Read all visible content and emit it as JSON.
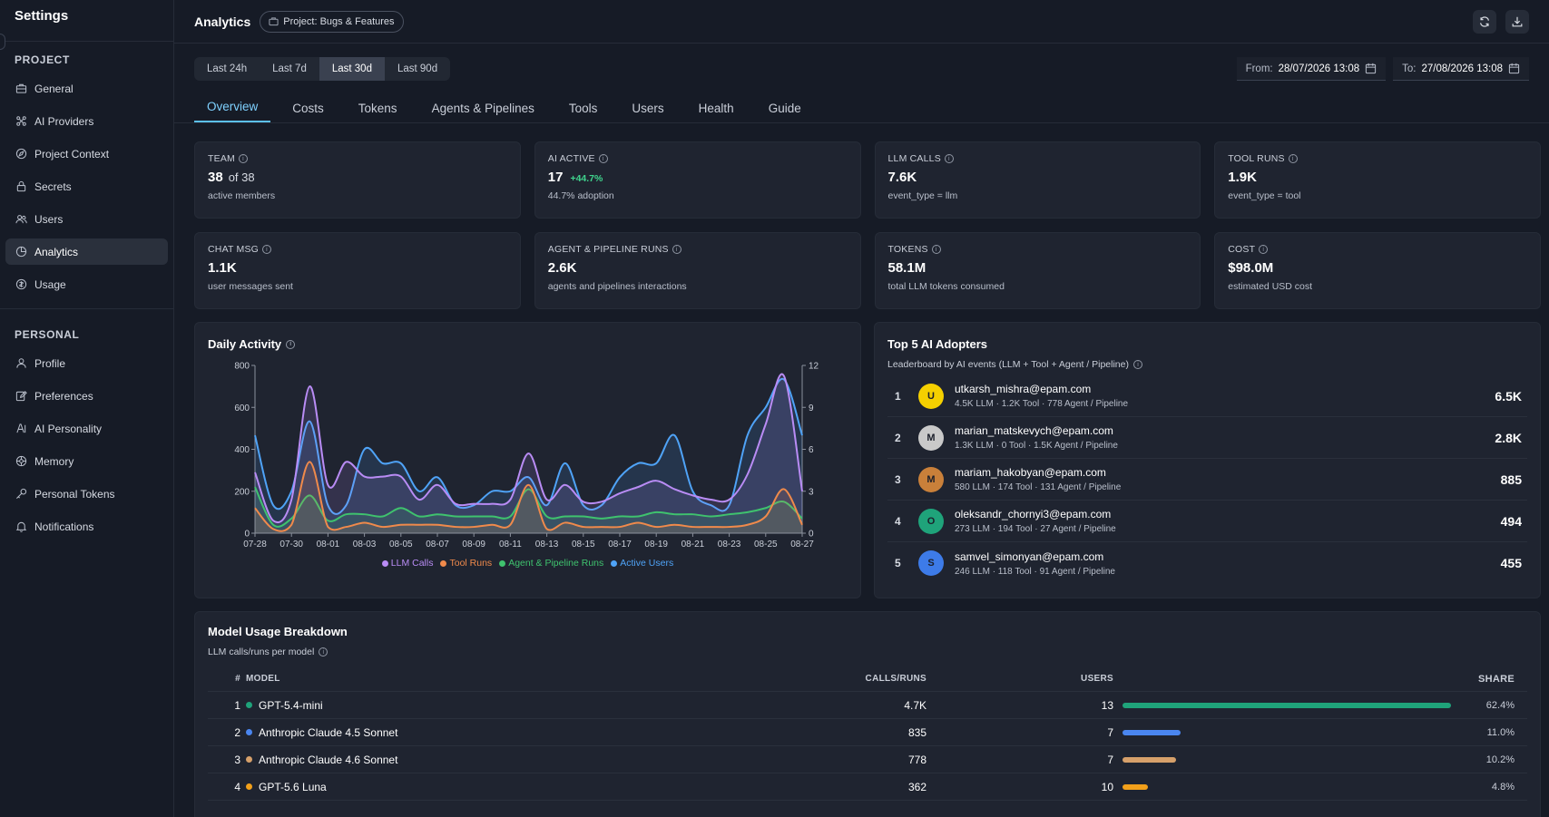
{
  "sidebar": {
    "title": "Settings",
    "project_section": "PROJECT",
    "project_items": [
      {
        "label": "General",
        "icon": "briefcase-icon"
      },
      {
        "label": "AI Providers",
        "icon": "providers-icon"
      },
      {
        "label": "Project Context",
        "icon": "compass-icon"
      },
      {
        "label": "Secrets",
        "icon": "lock-icon"
      },
      {
        "label": "Users",
        "icon": "users-icon"
      },
      {
        "label": "Analytics",
        "icon": "analytics-icon",
        "active": true
      },
      {
        "label": "Usage",
        "icon": "usage-icon"
      }
    ],
    "personal_section": "PERSONAL",
    "personal_items": [
      {
        "label": "Profile",
        "icon": "user-icon"
      },
      {
        "label": "Preferences",
        "icon": "edit-icon"
      },
      {
        "label": "AI Personality",
        "icon": "ai-icon"
      },
      {
        "label": "Memory",
        "icon": "memory-icon"
      },
      {
        "label": "Personal Tokens",
        "icon": "key-icon"
      },
      {
        "label": "Notifications",
        "icon": "bell-icon"
      }
    ]
  },
  "header": {
    "title": "Analytics",
    "project_chip": "Project: Bugs & Features"
  },
  "filters": {
    "ranges": [
      "Last 24h",
      "Last 7d",
      "Last 30d",
      "Last 90d"
    ],
    "active_range": "Last 30d",
    "from_label": "From:",
    "from_value": "28/07/2026 13:08",
    "to_label": "To:",
    "to_value": "27/08/2026 13:08"
  },
  "tabs": [
    "Overview",
    "Costs",
    "Tokens",
    "Agents & Pipelines",
    "Tools",
    "Users",
    "Health",
    "Guide"
  ],
  "active_tab": "Overview",
  "cards": [
    {
      "label": "TEAM",
      "value": "38",
      "of": "of 38",
      "sub": "active members"
    },
    {
      "label": "AI ACTIVE",
      "value": "17",
      "delta": "+44.7%",
      "sub": "44.7% adoption"
    },
    {
      "label": "LLM CALLS",
      "value": "7.6K",
      "sub": "event_type = llm"
    },
    {
      "label": "TOOL RUNS",
      "value": "1.9K",
      "sub": "event_type = tool"
    },
    {
      "label": "CHAT MSG",
      "value": "1.1K",
      "sub": "user messages sent"
    },
    {
      "label": "AGENT & PIPELINE RUNS",
      "value": "2.6K",
      "sub": "agents and pipelines interactions"
    },
    {
      "label": "TOKENS",
      "value": "58.1M",
      "sub": "total LLM tokens consumed"
    },
    {
      "label": "COST",
      "value": "$98.0M",
      "sub": "estimated USD cost"
    }
  ],
  "daily_activity": {
    "title": "Daily Activity"
  },
  "chart_data": {
    "type": "area",
    "title": "Daily Activity",
    "x": [
      "07-28",
      "07-29",
      "07-30",
      "07-31",
      "08-01",
      "08-02",
      "08-03",
      "08-04",
      "08-05",
      "08-06",
      "08-07",
      "08-08",
      "08-09",
      "08-10",
      "08-11",
      "08-12",
      "08-13",
      "08-14",
      "08-15",
      "08-16",
      "08-17",
      "08-18",
      "08-19",
      "08-20",
      "08-21",
      "08-22",
      "08-23",
      "08-24",
      "08-25",
      "08-26",
      "08-27"
    ],
    "x_ticks": [
      "07-28",
      "07-30",
      "08-01",
      "08-03",
      "08-05",
      "08-07",
      "08-09",
      "08-11",
      "08-13",
      "08-15",
      "08-17",
      "08-19",
      "08-21",
      "08-23",
      "08-25",
      "08-27"
    ],
    "y_left_ticks": [
      "0",
      "200",
      "400",
      "600",
      "800"
    ],
    "y_right_ticks": [
      "0",
      "3",
      "6",
      "9",
      "12"
    ],
    "ylim_left": [
      0,
      800
    ],
    "ylim_right": [
      0,
      12
    ],
    "series": [
      {
        "name": "LLM Calls",
        "axis": "left",
        "color": "#b98cf5",
        "values": [
          290,
          60,
          160,
          700,
          230,
          340,
          270,
          270,
          270,
          160,
          230,
          140,
          140,
          140,
          160,
          380,
          160,
          230,
          150,
          150,
          190,
          220,
          250,
          210,
          180,
          160,
          160,
          280,
          520,
          750,
          200
        ]
      },
      {
        "name": "Tool Runs",
        "axis": "left",
        "color": "#f08a4b",
        "values": [
          120,
          20,
          40,
          340,
          30,
          30,
          50,
          30,
          40,
          40,
          40,
          30,
          30,
          40,
          40,
          230,
          20,
          50,
          30,
          30,
          30,
          50,
          30,
          40,
          30,
          30,
          30,
          40,
          80,
          210,
          40
        ]
      },
      {
        "name": "Agent & Pipeline Runs",
        "axis": "left",
        "color": "#3fc26e",
        "values": [
          220,
          40,
          70,
          180,
          60,
          90,
          90,
          80,
          120,
          80,
          90,
          80,
          80,
          80,
          80,
          210,
          80,
          80,
          80,
          70,
          80,
          80,
          100,
          90,
          90,
          80,
          90,
          100,
          120,
          150,
          70
        ]
      },
      {
        "name": "Active Users",
        "axis": "right",
        "color": "#4fa3f7",
        "values": [
          7,
          2,
          3,
          8,
          2,
          2,
          6,
          5,
          5,
          3,
          4,
          2,
          2,
          3,
          3,
          4,
          2,
          5,
          2,
          2,
          4,
          5,
          5,
          7,
          3,
          2,
          2,
          7,
          9,
          11,
          7
        ]
      }
    ]
  },
  "leaderboard": {
    "title": "Top 5 AI Adopters",
    "subtitle": "Leaderboard by AI events (LLM + Tool + Agent / Pipeline)",
    "rows": [
      {
        "rank": "1",
        "initial": "U",
        "color": "#f5d000",
        "email": "utkarsh_mishra@epam.com",
        "meta": "4.5K LLM · 1.2K Tool · 778 Agent / Pipeline",
        "total": "6.5K"
      },
      {
        "rank": "2",
        "initial": "M",
        "color": "#c9c9c9",
        "email": "marian_matskevych@epam.com",
        "meta": "1.3K LLM · 0 Tool · 1.5K Agent / Pipeline",
        "total": "2.8K"
      },
      {
        "rank": "3",
        "initial": "M",
        "color": "#c9803a",
        "email": "mariam_hakobyan@epam.com",
        "meta": "580 LLM · 174 Tool · 131 Agent / Pipeline",
        "total": "885"
      },
      {
        "rank": "4",
        "initial": "O",
        "color": "#1fa37a",
        "email": "oleksandr_chornyi3@epam.com",
        "meta": "273 LLM · 194 Tool · 27 Agent / Pipeline",
        "total": "494"
      },
      {
        "rank": "5",
        "initial": "S",
        "color": "#3d7be8",
        "email": "samvel_simonyan@epam.com",
        "meta": "246 LLM · 118 Tool · 91 Agent / Pipeline",
        "total": "455"
      }
    ]
  },
  "models": {
    "title": "Model Usage Breakdown",
    "subtitle": "LLM calls/runs per model",
    "headers": {
      "idx": "#",
      "model": "MODEL",
      "calls": "CALLS/RUNS",
      "users": "USERS",
      "share": "SHARE"
    },
    "rows": [
      {
        "idx": "1",
        "name": "GPT-5.4-mini",
        "color": "#1fa37a",
        "calls": "4.7K",
        "users": "13",
        "share": "62.4%",
        "share_value": 62.4
      },
      {
        "idx": "2",
        "name": "Anthropic Claude 4.5 Sonnet",
        "color": "#4a86f0",
        "calls": "835",
        "users": "7",
        "share": "11.0%",
        "share_value": 11.0
      },
      {
        "idx": "3",
        "name": "Anthropic Claude 4.6 Sonnet",
        "color": "#d6a06a",
        "calls": "778",
        "users": "7",
        "share": "10.2%",
        "share_value": 10.2
      },
      {
        "idx": "4",
        "name": "GPT-5.6 Luna",
        "color": "#f2a01a",
        "calls": "362",
        "users": "10",
        "share": "4.8%",
        "share_value": 4.8
      }
    ]
  }
}
